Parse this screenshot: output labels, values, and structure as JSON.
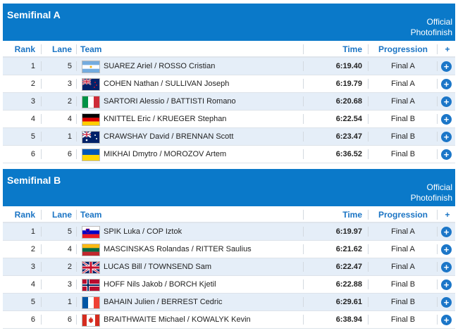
{
  "columns": {
    "rank": "Rank",
    "lane": "Lane",
    "team": "Team",
    "time": "Time",
    "progression": "Progression",
    "plus": "+"
  },
  "official_label": "Official Photofinish",
  "colors": {
    "header": "#0a79c9",
    "accent": "#1a74c4",
    "row_alt": "#e5eef8"
  },
  "semifinals": [
    {
      "title": "Semifinal A",
      "rows": [
        {
          "rank": "1",
          "lane": "5",
          "flag": "ARG",
          "team": "SUAREZ Ariel / ROSSO Cristian",
          "time": "6:19.40",
          "progression": "Final A"
        },
        {
          "rank": "2",
          "lane": "3",
          "flag": "NZL",
          "team": "COHEN Nathan / SULLIVAN Joseph",
          "time": "6:19.79",
          "progression": "Final A"
        },
        {
          "rank": "3",
          "lane": "2",
          "flag": "ITA",
          "team": "SARTORI Alessio / BATTISTI Romano",
          "time": "6:20.68",
          "progression": "Final A"
        },
        {
          "rank": "4",
          "lane": "4",
          "flag": "GER",
          "team": "KNITTEL Eric / KRUEGER Stephan",
          "time": "6:22.54",
          "progression": "Final B"
        },
        {
          "rank": "5",
          "lane": "1",
          "flag": "AUS",
          "team": "CRAWSHAY David / BRENNAN Scott",
          "time": "6:23.47",
          "progression": "Final B"
        },
        {
          "rank": "6",
          "lane": "6",
          "flag": "UKR",
          "team": "MIKHAI Dmytro / MOROZOV Artem",
          "time": "6:36.52",
          "progression": "Final B"
        }
      ]
    },
    {
      "title": "Semifinal B",
      "rows": [
        {
          "rank": "1",
          "lane": "5",
          "flag": "SLO",
          "team": "SPIK Luka / COP Iztok",
          "time": "6:19.97",
          "progression": "Final A"
        },
        {
          "rank": "2",
          "lane": "4",
          "flag": "LTU",
          "team": "MASCINSKAS Rolandas / RITTER Saulius",
          "time": "6:21.62",
          "progression": "Final A"
        },
        {
          "rank": "3",
          "lane": "2",
          "flag": "GBR",
          "team": "LUCAS Bill / TOWNSEND Sam",
          "time": "6:22.47",
          "progression": "Final A"
        },
        {
          "rank": "4",
          "lane": "3",
          "flag": "NOR",
          "team": "HOFF Nils Jakob / BORCH Kjetil",
          "time": "6:22.88",
          "progression": "Final B"
        },
        {
          "rank": "5",
          "lane": "1",
          "flag": "FRA",
          "team": "BAHAIN Julien / BERREST Cedric",
          "time": "6:29.61",
          "progression": "Final B"
        },
        {
          "rank": "6",
          "lane": "6",
          "flag": "CAN",
          "team": "BRAITHWAITE Michael / KOWALYK Kevin",
          "time": "6:38.94",
          "progression": "Final B"
        }
      ]
    }
  ]
}
